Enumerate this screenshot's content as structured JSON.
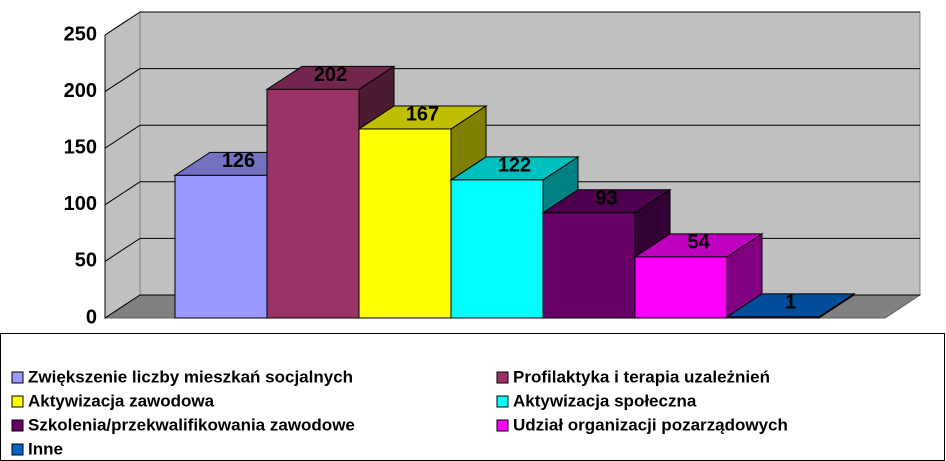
{
  "chart_data": {
    "type": "bar3d",
    "series": [
      {
        "name": "Zwiększenie liczby mieszkań socjalnych",
        "color": "#9999ff",
        "values": [
          126
        ]
      },
      {
        "name": "Profilaktyka i terapia uzależnień",
        "color": "#993366",
        "values": [
          202
        ]
      },
      {
        "name": "Aktywizacja zawodowa",
        "color": "#ffff00",
        "values": [
          167
        ]
      },
      {
        "name": "Aktywizacja społeczna",
        "color": "#00ffff",
        "values": [
          122
        ]
      },
      {
        "name": "Szkolenia/przekwalifikowania zawodowe",
        "color": "#660066",
        "values": [
          93
        ]
      },
      {
        "name": "Udział organizacji pozarządowych",
        "color": "#ff00ff",
        "values": [
          54
        ]
      },
      {
        "name": "Inne",
        "color": "#0066cc",
        "values": [
          1
        ]
      }
    ],
    "ylim": [
      0,
      250
    ],
    "yticks": [
      0,
      50,
      100,
      150,
      200,
      250
    ],
    "grid": true,
    "legend": "bottom"
  }
}
